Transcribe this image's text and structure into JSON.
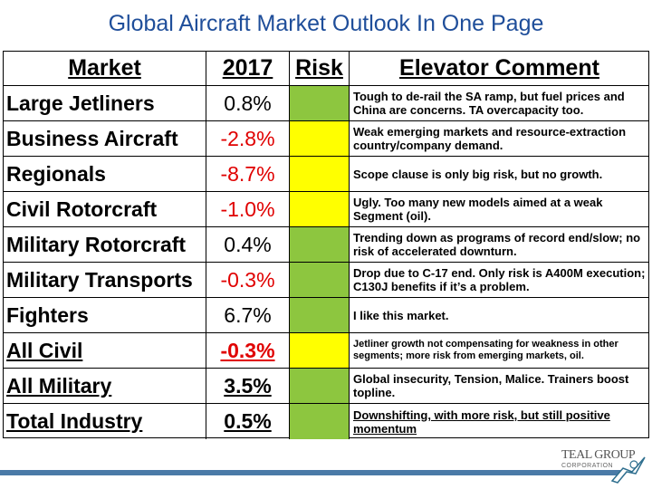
{
  "title": "Global Aircraft Market Outlook In One Page",
  "headers": {
    "market": "Market",
    "year": "2017",
    "risk": "Risk",
    "comment": "Elevator Comment"
  },
  "colors": {
    "green": "#8dc63f",
    "yellow": "#ffff00",
    "red": "#e00000",
    "title": "#1f4e9a"
  },
  "rows": [
    {
      "market": "Large Jetliners",
      "value": "0.8%",
      "risk": "green",
      "comment": "Tough to de-rail the SA ramp, but fuel prices and China are concerns.  TA overcapacity too."
    },
    {
      "market": "Business Aircraft",
      "value": "-2.8%",
      "risk": "yellow",
      "comment": "Weak emerging markets and resource-extraction country/company demand."
    },
    {
      "market": "Regionals",
      "value": "-8.7%",
      "risk": "yellow",
      "comment": "Scope clause is only big risk, but no growth."
    },
    {
      "market": "Civil Rotorcraft",
      "value": "-1.0%",
      "risk": "yellow",
      "comment": "Ugly. Too many new models aimed at a weak Segment (oil)."
    },
    {
      "market": "Military Rotorcraft",
      "value": "0.4%",
      "risk": "green",
      "comment": "Trending down as programs of record end/slow; no risk of accelerated downturn."
    },
    {
      "market": "Military Transports",
      "value": "-0.3%",
      "risk": "green",
      "comment": "Drop due to C-17 end. Only risk is A400M execution; C130J benefits if it’s a problem."
    },
    {
      "market": "Fighters",
      "value": "6.7%",
      "risk": "green",
      "comment": "I like this market."
    },
    {
      "market": "All Civil",
      "value": "-0.3%",
      "risk": "yellow",
      "comment": "Jetliner growth not compensating for weakness in other segments; more risk from emerging markets, oil."
    },
    {
      "market": "All Military",
      "value": "3.5%",
      "risk": "green",
      "comment": "Global insecurity, Tension, Malice. Trainers boost topline."
    },
    {
      "market": "Total Industry",
      "value": "0.5%",
      "risk": "green",
      "comment": "Downshifting, with more risk, but still positive momentum"
    }
  ],
  "logo": {
    "name": "TEAL GROUP",
    "sub": "CORPORATION"
  }
}
